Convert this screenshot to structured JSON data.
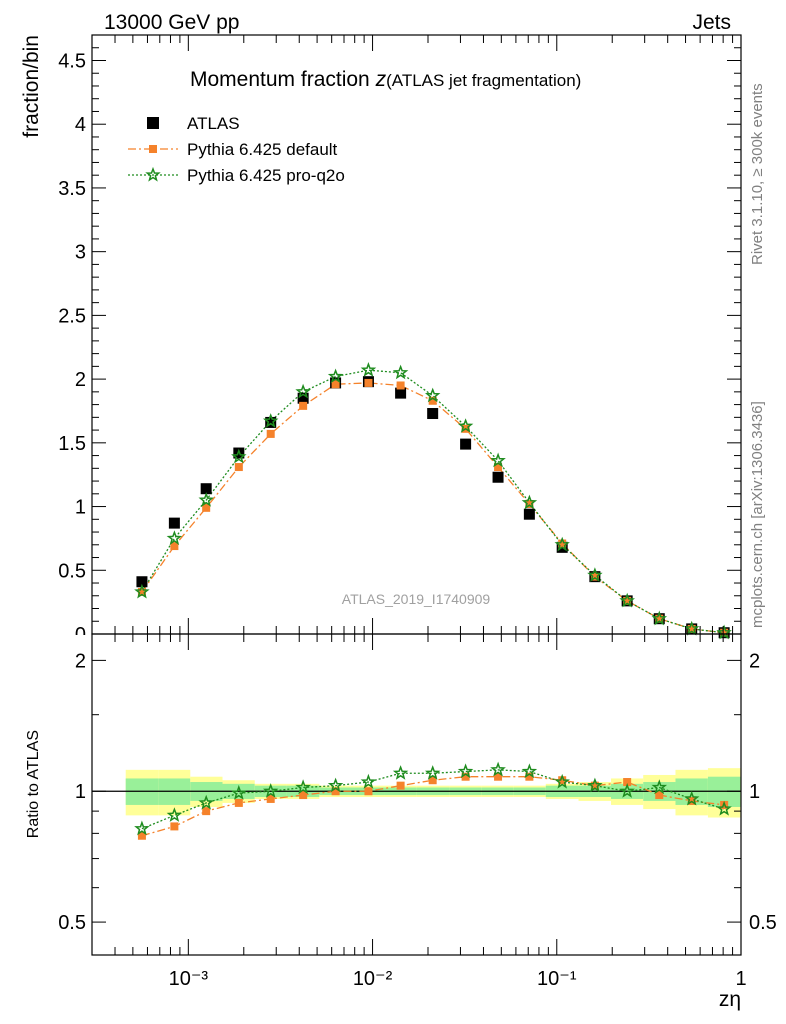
{
  "header": {
    "left": "13000 GeV pp",
    "right": "Jets"
  },
  "side_labels": {
    "rivet": "Rivet 3.1.10, ≥ 300k events",
    "mcplots": "mcplots.cern.ch [arXiv:1306.3436]"
  },
  "chart_data": [
    {
      "type": "scatter",
      "title": "Momentum fraction ",
      "title_var": "z",
      "subtitle": "(ATLAS jet fragmentation)",
      "watermark": "ATLAS_2019_I1740909",
      "ylabel": "fraction/bin",
      "xlabel": "zη",
      "xscale": "log",
      "xlim": [
        0.0003,
        1.0
      ],
      "ylim": [
        0,
        4.7
      ],
      "yticks": [
        0.5,
        1,
        1.5,
        2,
        2.5,
        3,
        3.5,
        4,
        4.5
      ],
      "ytick_labels": [
        "0.5",
        "1",
        "1.5",
        "2",
        "2.5",
        "3",
        "3.5",
        "4",
        "4.5"
      ],
      "x": [
        0.00056,
        0.00084,
        0.00125,
        0.00188,
        0.0028,
        0.0042,
        0.0063,
        0.0095,
        0.0142,
        0.0212,
        0.032,
        0.048,
        0.071,
        0.107,
        0.161,
        0.241,
        0.36,
        0.54,
        0.81
      ],
      "series": [
        {
          "name": "ATLAS",
          "color": "#000000",
          "marker": "square",
          "line": "none",
          "values": [
            0.41,
            0.87,
            1.14,
            1.42,
            1.66,
            1.85,
            1.97,
            1.98,
            1.89,
            1.73,
            1.49,
            1.23,
            0.94,
            0.68,
            0.45,
            0.26,
            0.12,
            0.04,
            0.01
          ]
        },
        {
          "name": "Pythia 6.425 default",
          "color": "#f5822b",
          "marker": "square",
          "line": "dashdot",
          "values": [
            0.33,
            0.69,
            0.99,
            1.31,
            1.57,
            1.79,
            1.96,
            1.97,
            1.95,
            1.83,
            1.61,
            1.31,
            1.02,
            0.71,
            0.45,
            0.26,
            0.12,
            0.04,
            0.01
          ]
        },
        {
          "name": "Pythia 6.425 pro-q2o",
          "color": "#1f8c1f",
          "marker": "star",
          "line": "dotted",
          "values": [
            0.33,
            0.75,
            1.05,
            1.39,
            1.67,
            1.9,
            2.02,
            2.07,
            2.05,
            1.87,
            1.63,
            1.36,
            1.03,
            0.7,
            0.46,
            0.26,
            0.12,
            0.04,
            0.01
          ]
        }
      ]
    },
    {
      "type": "scatter",
      "ylabel": "Ratio to ATLAS",
      "xlabel": "zη",
      "xscale": "log",
      "yscale": "log",
      "xlim": [
        0.0003,
        1.0
      ],
      "ylim": [
        0.42,
        2.3
      ],
      "yticks": [
        0.5,
        1,
        2
      ],
      "ytick_labels": [
        "0.5",
        "1",
        "2"
      ],
      "xtick_labels": [
        "10⁻³",
        "10⁻²",
        "10⁻¹",
        "1"
      ],
      "band_inner": [
        0.93,
        0.93,
        0.95,
        0.96,
        0.97,
        0.97,
        0.98,
        0.98,
        0.98,
        0.98,
        0.98,
        0.98,
        0.98,
        0.97,
        0.97,
        0.96,
        0.95,
        0.93,
        0.92
      ],
      "band_inner_hi": [
        1.07,
        1.07,
        1.05,
        1.04,
        1.03,
        1.03,
        1.02,
        1.02,
        1.02,
        1.02,
        1.02,
        1.02,
        1.02,
        1.03,
        1.03,
        1.04,
        1.05,
        1.07,
        1.08
      ],
      "band_outer": [
        0.88,
        0.88,
        0.92,
        0.94,
        0.96,
        0.96,
        0.97,
        0.97,
        0.97,
        0.97,
        0.97,
        0.97,
        0.97,
        0.96,
        0.95,
        0.93,
        0.91,
        0.88,
        0.87
      ],
      "band_outer_hi": [
        1.12,
        1.12,
        1.08,
        1.06,
        1.04,
        1.04,
        1.03,
        1.03,
        1.03,
        1.03,
        1.03,
        1.03,
        1.03,
        1.04,
        1.05,
        1.07,
        1.09,
        1.12,
        1.13
      ],
      "series": [
        {
          "name": "Pythia 6.425 default",
          "color": "#f5822b",
          "marker": "square",
          "line": "dashdot",
          "values": [
            0.79,
            0.83,
            0.9,
            0.94,
            0.96,
            0.98,
            1.0,
            1.0,
            1.03,
            1.06,
            1.08,
            1.08,
            1.08,
            1.06,
            1.03,
            1.05,
            0.98,
            0.95,
            0.93
          ]
        },
        {
          "name": "Pythia 6.425 pro-q2o",
          "color": "#1f8c1f",
          "marker": "star",
          "line": "dotted",
          "values": [
            0.82,
            0.88,
            0.94,
            0.99,
            1.0,
            1.02,
            1.03,
            1.05,
            1.1,
            1.1,
            1.11,
            1.12,
            1.11,
            1.05,
            1.03,
            1.0,
            1.02,
            0.96,
            0.91
          ]
        }
      ]
    }
  ]
}
